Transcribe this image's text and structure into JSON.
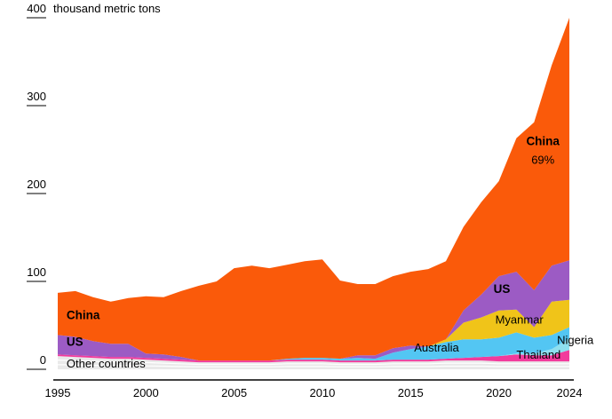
{
  "chart_data": {
    "type": "area",
    "stacked": true,
    "unit_label": "thousand metric tons",
    "xlabel": "",
    "ylabel": "thousand metric tons",
    "ylim": [
      0,
      400
    ],
    "grid": false,
    "legend_position": "inline-annotations",
    "x": [
      1995,
      1996,
      1997,
      1998,
      1999,
      2000,
      2001,
      2002,
      2003,
      2004,
      2005,
      2006,
      2007,
      2008,
      2009,
      2010,
      2011,
      2012,
      2013,
      2014,
      2015,
      2016,
      2017,
      2018,
      2019,
      2020,
      2021,
      2022,
      2023,
      2024
    ],
    "x_ticks": [
      1995,
      2000,
      2005,
      2010,
      2015,
      2020,
      2024
    ],
    "y_ticks": [
      0,
      100,
      200,
      300,
      400
    ],
    "series": [
      {
        "id": "other-countries",
        "name": "Other countries",
        "color": "#E9E9E9",
        "values": [
          15,
          14,
          13,
          12,
          12,
          11,
          10,
          9,
          8,
          8,
          8,
          8,
          8,
          9,
          9,
          9,
          8,
          8,
          8,
          9,
          9,
          9,
          10,
          10,
          10,
          9,
          9,
          9,
          9,
          9
        ]
      },
      {
        "id": "thailand",
        "name": "Thailand",
        "color": "#F23B9C",
        "values": [
          2,
          2,
          2,
          2,
          2,
          2,
          2,
          2,
          2,
          2,
          2,
          2,
          2,
          2,
          2,
          2,
          2,
          2,
          2,
          2,
          2,
          2,
          2,
          3,
          4,
          6,
          8,
          7,
          7,
          13
        ]
      },
      {
        "id": "nigeria",
        "name": "Nigeria",
        "color": "#8EE0EF",
        "values": [
          0,
          0,
          0,
          0,
          0,
          0,
          0,
          0,
          0,
          0,
          0,
          0,
          0,
          0,
          0,
          0,
          0,
          0,
          0,
          0,
          0,
          0,
          0,
          0,
          0,
          0,
          1,
          2,
          7,
          13
        ]
      },
      {
        "id": "australia",
        "name": "Australia",
        "color": "#53C6F3",
        "values": [
          0,
          0,
          0,
          0,
          0,
          0,
          0,
          0,
          0,
          0,
          0,
          0,
          0,
          1,
          2,
          2,
          2,
          3,
          2,
          8,
          12,
          15,
          19,
          21,
          20,
          21,
          24,
          18,
          16,
          13
        ]
      },
      {
        "id": "myanmar",
        "name": "Myanmar",
        "color": "#F0C419",
        "values": [
          0,
          0,
          0,
          0,
          0,
          0,
          0,
          0,
          0,
          0,
          0,
          0,
          0,
          0,
          0,
          0,
          0,
          0,
          0,
          0,
          0,
          0,
          3,
          19,
          25,
          31,
          26,
          12,
          38,
          31
        ]
      },
      {
        "id": "us",
        "name": "US",
        "color": "#9C5BC4",
        "values": [
          22,
          21,
          17,
          15,
          15,
          5,
          5,
          3,
          0,
          0,
          0,
          0,
          0,
          0,
          0,
          0,
          0,
          3,
          4,
          5,
          4,
          0,
          0,
          14,
          26,
          39,
          43,
          42,
          41,
          45
        ]
      },
      {
        "id": "china",
        "name": "China",
        "color": "#FA5A0A",
        "values": [
          48,
          52,
          50,
          48,
          52,
          65,
          65,
          75,
          85,
          90,
          105,
          108,
          105,
          107,
          110,
          112,
          89,
          81,
          81,
          82,
          84,
          88,
          89,
          95,
          105,
          108,
          152,
          191,
          228,
          276
        ]
      }
    ],
    "annotations": [
      {
        "id": "china-left",
        "text": "China",
        "year": 1995.5,
        "value": 57,
        "bold": true,
        "anchor": "start"
      },
      {
        "id": "us-left",
        "text": "US",
        "year": 1995.5,
        "value": 27,
        "bold": true,
        "anchor": "start"
      },
      {
        "id": "other-countries-label",
        "text": "Other countries",
        "year": 1995.5,
        "value": 2,
        "bold": false,
        "anchor": "start"
      },
      {
        "id": "china-right",
        "text": "China",
        "year": 2022.5,
        "value": 255,
        "bold": true,
        "anchor": "middle"
      },
      {
        "id": "china-share",
        "text": "69%",
        "year": 2022.5,
        "value": 234,
        "bold": false,
        "anchor": "middle"
      },
      {
        "id": "us-right",
        "text": "US",
        "year": 2019.7,
        "value": 87,
        "bold": true,
        "anchor": "start"
      },
      {
        "id": "myanmar-label",
        "text": "Myanmar",
        "year": 2019.8,
        "value": 52,
        "bold": false,
        "anchor": "start"
      },
      {
        "id": "australia-label",
        "text": "Australia",
        "year": 2015.2,
        "value": 20,
        "bold": false,
        "anchor": "start"
      },
      {
        "id": "thailand-label",
        "text": "Thailand",
        "year": 2021.0,
        "value": 12,
        "bold": false,
        "anchor": "start"
      },
      {
        "id": "nigeria-label",
        "text": "Nigeria",
        "year": 2023.3,
        "value": 29,
        "bold": false,
        "anchor": "start"
      }
    ]
  }
}
